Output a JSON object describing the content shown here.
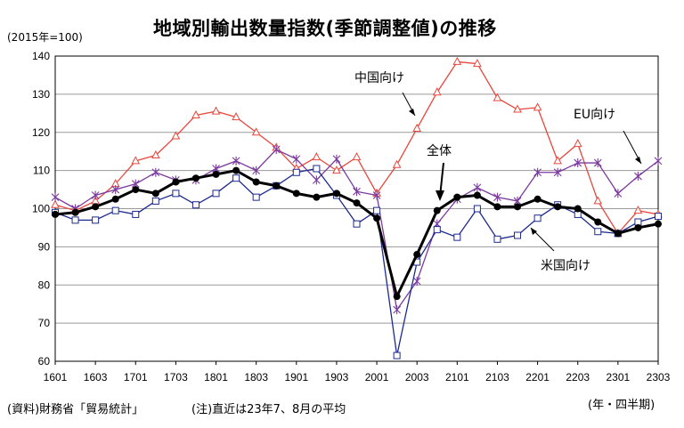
{
  "header": {
    "base_note": "(2015年=100)",
    "title": "地域別輸出数量指数(季節調整値)の推移"
  },
  "footer": {
    "source": "(資料)財務省「貿易統計」",
    "note": "(注)直近は23年7、8月の平均",
    "unit": "(年・四半期)"
  },
  "chart_data": {
    "type": "line",
    "title": "地域別輸出数量指数(季節調整値)の推移",
    "ylabel": "(2015年=100)",
    "xlabel": "(年・四半期)",
    "ylim": [
      60,
      140
    ],
    "yticks": [
      60,
      70,
      80,
      90,
      100,
      110,
      120,
      130,
      140
    ],
    "grid": true,
    "x": [
      "1601",
      "1602",
      "1603",
      "1604",
      "1701",
      "1702",
      "1703",
      "1704",
      "1801",
      "1802",
      "1803",
      "1804",
      "1901",
      "1902",
      "1903",
      "1904",
      "2001",
      "2002",
      "2003",
      "2004",
      "2101",
      "2102",
      "2103",
      "2104",
      "2201",
      "2202",
      "2203",
      "2204",
      "2301",
      "2302",
      "2303"
    ],
    "xticks": [
      "1601",
      "1603",
      "1701",
      "1703",
      "1801",
      "1803",
      "1901",
      "1903",
      "2001",
      "2003",
      "2101",
      "2103",
      "2201",
      "2203",
      "2301",
      "2303"
    ],
    "series": [
      {
        "name": "中国向け",
        "color": "#e8463c",
        "marker": "triangle",
        "values": [
          101,
          99.5,
          102,
          106.5,
          112.5,
          114,
          119,
          124.5,
          125.5,
          124,
          120,
          116,
          110.5,
          113.5,
          110,
          113.5,
          104,
          111.5,
          121,
          130.5,
          138.5,
          138,
          129,
          126,
          126.5,
          112.5,
          117,
          102,
          93.5,
          99.5,
          98.5
        ]
      },
      {
        "name": "EU向け",
        "color": "#7a3a9e",
        "marker": "star",
        "values": [
          103,
          100,
          103.5,
          105,
          106.5,
          109.5,
          107.5,
          107.5,
          110.5,
          112.5,
          110,
          115.5,
          113,
          107.5,
          113,
          104.5,
          103.5,
          73.5,
          81,
          96,
          102.5,
          105.5,
          103,
          102,
          109.5,
          109.5,
          112,
          112,
          104,
          108.5,
          112.5
        ]
      },
      {
        "name": "米国向け",
        "color": "#1c2a8c",
        "marker": "square",
        "values": [
          99,
          97,
          97,
          99.5,
          98.5,
          102,
          104,
          101,
          104,
          108,
          103,
          106,
          109.5,
          110.5,
          103.5,
          96,
          99.5,
          61.5,
          86,
          94.5,
          92.5,
          100,
          92,
          93,
          97.5,
          101,
          98.5,
          94,
          93.5,
          96.5,
          98
        ]
      },
      {
        "name": "全体",
        "color": "#000000",
        "marker": "circle",
        "values": [
          98.5,
          99,
          100.5,
          102.5,
          105,
          104,
          107,
          108,
          109,
          110,
          107,
          106,
          104,
          103,
          104,
          101.5,
          97.5,
          77,
          88,
          99.5,
          103,
          103.5,
          100.5,
          100.5,
          102.5,
          100.5,
          100,
          96.5,
          93.5,
          95,
          96
        ]
      }
    ]
  }
}
